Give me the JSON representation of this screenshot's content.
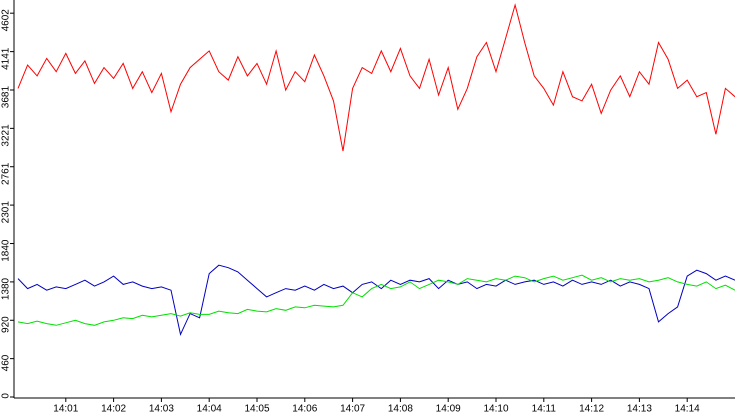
{
  "chart_data": {
    "type": "line",
    "categories": [
      null,
      null,
      null,
      null,
      null,
      "14:01",
      null,
      null,
      null,
      null,
      "14:02",
      null,
      null,
      null,
      null,
      "14:03",
      null,
      null,
      null,
      null,
      "14:04",
      null,
      null,
      null,
      null,
      "14:05",
      null,
      null,
      null,
      null,
      "14:06",
      null,
      null,
      null,
      null,
      "14:07",
      null,
      null,
      null,
      null,
      "14:08",
      null,
      null,
      null,
      null,
      "14:09",
      null,
      null,
      null,
      null,
      "14:10",
      null,
      null,
      null,
      null,
      "14:11",
      null,
      null,
      null,
      null,
      "14:12",
      null,
      null,
      null,
      null,
      "14:13",
      null,
      null,
      null,
      null,
      "14:14",
      null,
      null,
      null,
      null,
      null
    ],
    "series": [
      {
        "color": "#ff0000",
        "values": [
          3700,
          3980,
          3850,
          4060,
          3900,
          4120,
          3880,
          4030,
          3760,
          3950,
          3820,
          4000,
          3700,
          3900,
          3650,
          3880,
          3420,
          3750,
          3950,
          4050,
          4150,
          3900,
          3800,
          4080,
          3850,
          4000,
          3750,
          4150,
          3680,
          3900,
          3780,
          4100,
          3850,
          3550,
          2950,
          3700,
          3950,
          3880,
          4150,
          3900,
          4180,
          3850,
          3700,
          4050,
          3620,
          3950,
          3450,
          3700,
          4080,
          4250,
          3900,
          4300,
          4700,
          4250,
          3850,
          3700,
          3500,
          3900,
          3600,
          3550,
          3750,
          3400,
          3680,
          3850,
          3600,
          3900,
          3750,
          4250,
          4050,
          3700,
          3800,
          3600,
          3650,
          3150,
          3700,
          3600
        ]
      },
      {
        "color": "#0000c0",
        "values": [
          1420,
          1300,
          1350,
          1280,
          1320,
          1300,
          1350,
          1400,
          1330,
          1380,
          1450,
          1350,
          1380,
          1330,
          1300,
          1320,
          1280,
          750,
          1000,
          950,
          1480,
          1580,
          1550,
          1500,
          1400,
          1300,
          1200,
          1250,
          1300,
          1280,
          1330,
          1280,
          1350,
          1300,
          1330,
          1250,
          1350,
          1380,
          1300,
          1400,
          1350,
          1400,
          1380,
          1420,
          1300,
          1400,
          1350,
          1380,
          1300,
          1350,
          1330,
          1400,
          1350,
          1380,
          1400,
          1350,
          1380,
          1330,
          1400,
          1350,
          1380,
          1350,
          1400,
          1330,
          1380,
          1350,
          1300,
          900,
          1000,
          1080,
          1450,
          1520,
          1480,
          1400,
          1450,
          1400
        ]
      },
      {
        "color": "#00e000",
        "values": [
          900,
          880,
          910,
          880,
          860,
          890,
          920,
          880,
          860,
          900,
          920,
          950,
          940,
          980,
          960,
          980,
          1000,
          970,
          1010,
          990,
          990,
          1030,
          1010,
          1000,
          1050,
          1030,
          1020,
          1060,
          1040,
          1080,
          1070,
          1100,
          1090,
          1080,
          1100,
          1250,
          1200,
          1300,
          1350,
          1300,
          1320,
          1380,
          1300,
          1350,
          1400,
          1380,
          1350,
          1420,
          1400,
          1380,
          1420,
          1400,
          1450,
          1430,
          1380,
          1420,
          1450,
          1400,
          1430,
          1460,
          1400,
          1430,
          1380,
          1420,
          1400,
          1420,
          1380,
          1400,
          1430,
          1380,
          1350,
          1330,
          1380,
          1300,
          1340,
          1280
        ]
      }
    ],
    "ylim": [
      0,
      4760
    ],
    "yticks": [
      0,
      460,
      920,
      1380,
      1840,
      2301,
      2761,
      3221,
      3681,
      4141,
      4602
    ]
  }
}
